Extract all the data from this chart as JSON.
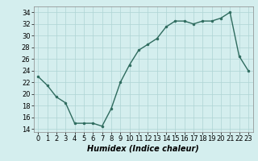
{
  "x": [
    0,
    1,
    2,
    3,
    4,
    5,
    6,
    7,
    8,
    9,
    10,
    11,
    12,
    13,
    14,
    15,
    16,
    17,
    18,
    19,
    20,
    21,
    22,
    23
  ],
  "y": [
    23,
    21.5,
    19.5,
    18.5,
    15,
    15,
    15,
    14.5,
    17.5,
    22,
    25,
    27.5,
    28.5,
    29.5,
    31.5,
    32.5,
    32.5,
    32,
    32.5,
    32.5,
    33,
    34,
    26.5,
    24
  ],
  "line_color": "#2e6b5e",
  "marker": "o",
  "marker_size": 2,
  "background_color": "#d4eeee",
  "grid_color": "#aed4d4",
  "xlabel": "Humidex (Indice chaleur)",
  "xlim": [
    -0.5,
    23.5
  ],
  "ylim": [
    13.5,
    35
  ],
  "yticks": [
    14,
    16,
    18,
    20,
    22,
    24,
    26,
    28,
    30,
    32,
    34
  ],
  "xticks": [
    0,
    1,
    2,
    3,
    4,
    5,
    6,
    7,
    8,
    9,
    10,
    11,
    12,
    13,
    14,
    15,
    16,
    17,
    18,
    19,
    20,
    21,
    22,
    23
  ],
  "xlabel_fontsize": 7,
  "tick_fontsize": 6,
  "line_width": 1.0
}
